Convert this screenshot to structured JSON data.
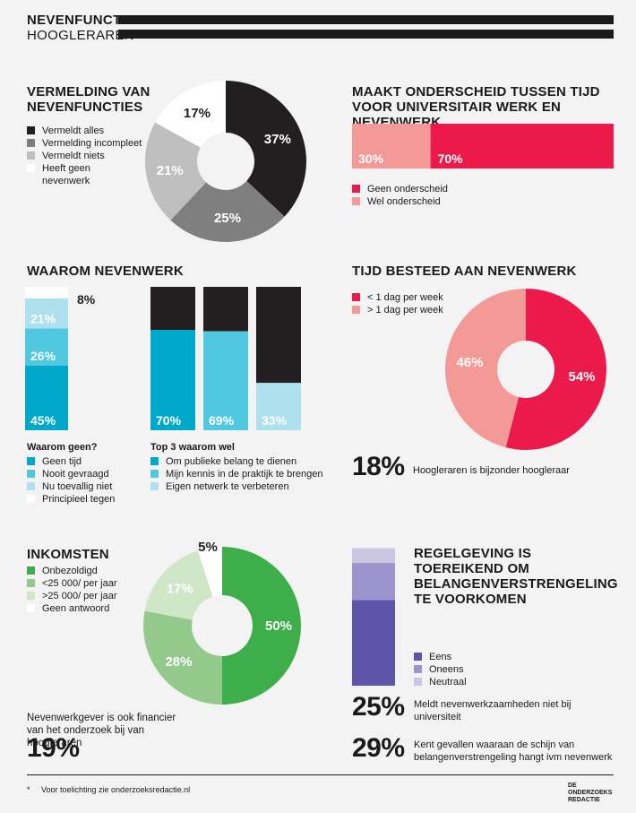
{
  "header": {
    "title": "NEVENFUNCTIES",
    "subtitle": "HOOGLERAREN"
  },
  "colors": {
    "black": "#231f20",
    "darkgray": "#7f7f7f",
    "lightgray": "#bfbfbf",
    "white": "#ffffff",
    "red": "#ec1a4b",
    "pink": "#f49a96",
    "teal": "#00a9c9",
    "teal2": "#4fc8e0",
    "teal3": "#aee0ee",
    "green": "#3dae49",
    "green2": "#93c98b",
    "green3": "#cfe6c7",
    "purple": "#5e55a8",
    "purple2": "#9c94cc",
    "purple3": "#cbc6e2"
  },
  "vermelding": {
    "heading": "VERMELDING VAN NEVENFUNCTIES",
    "legend": [
      "Vermeldt alles",
      "Vermelding incompleet",
      "Vermeldt niets",
      "Heeft geen nevenwerk"
    ],
    "labels": [
      "37%",
      "25%",
      "21%",
      "17%"
    ]
  },
  "onderscheid": {
    "heading": "MAAKT ONDERSCHEID TUSSEN TIJD VOOR UNIVERSITAIR WERK EN NEVENWERK",
    "legend": [
      "Geen onderscheid",
      "Wel onderscheid"
    ],
    "labels": [
      "70%",
      "30%"
    ]
  },
  "waarom": {
    "heading": "WAAROM NEVENWERK",
    "geen_title": "Waarom geen?",
    "geen_legend": [
      "Geen tijd",
      "Nooit gevraagd",
      "Nu toevallig niet",
      "Principieel tegen"
    ],
    "geen_labels": [
      "45%",
      "26%",
      "21%",
      "8%"
    ],
    "wel_title": "Top 3 waarom wel",
    "wel_legend": [
      "Om publieke belang te dienen",
      "Mijn kennis in de praktijk te brengen",
      "Eigen netwerk te verbeteren"
    ],
    "wel_labels": [
      "70%",
      "69%",
      "33%"
    ]
  },
  "tijd": {
    "heading": "TIJD BESTEED AAN NEVENWERK",
    "legend": [
      "< 1 dag per week",
      "> 1 dag per week"
    ],
    "labels": [
      "54%",
      "46%"
    ],
    "stat_num": "18%",
    "stat_text": "Hoogleraren is bijzonder hoogleraar"
  },
  "inkomsten": {
    "heading": "INKOMSTEN",
    "legend": [
      "Onbezoldigd",
      "<25 000/ per jaar",
      ">25 000/ per jaar",
      "Geen antwoord"
    ],
    "labels": [
      "50%",
      "28%",
      "17%",
      "5%"
    ],
    "stat_text": "Nevenwerkgever is ook financier van het onderzoek bij van hoogleraren",
    "stat_num": "19%"
  },
  "regelgeving": {
    "heading": "REGELGEVING IS TOEREIKEND OM BELANGENVERSTRENGELING TE VOORKOMEN",
    "legend": [
      "Eens",
      "Oneens",
      "Neutraal"
    ],
    "stat1_num": "25%",
    "stat1_text": "Meldt nevenwerkzaamheden niet bij universiteit",
    "stat2_num": "29%",
    "stat2_text": "Kent gevallen waaraan de schijn van belangenverstrengeling hangt ivm nevenwerk"
  },
  "footer": {
    "note": "Voor toelichting zie onderzoeksredactie.nl",
    "asterisk": "*",
    "logo_lines": [
      "DE",
      "ONDERZOEKS",
      "REDACTIE"
    ]
  },
  "chart_data": [
    {
      "type": "pie",
      "title": "VERMELDING VAN NEVENFUNCTIES",
      "categories": [
        "Vermeldt alles",
        "Vermelding incompleet",
        "Vermeldt niets",
        "Heeft geen nevenwerk"
      ],
      "values": [
        37,
        25,
        21,
        17
      ]
    },
    {
      "type": "bar",
      "title": "MAAKT ONDERSCHEID TUSSEN TIJD VOOR UNIVERSITAIR WERK EN NEVENWERK",
      "categories": [
        "Geen onderscheid",
        "Wel onderscheid"
      ],
      "values": [
        70,
        30
      ]
    },
    {
      "type": "bar",
      "title": "Waarom geen?",
      "categories": [
        "Geen tijd",
        "Nooit gevraagd",
        "Nu toevallig niet",
        "Principieel tegen"
      ],
      "values": [
        45,
        26,
        21,
        8
      ]
    },
    {
      "type": "bar",
      "title": "Top 3 waarom wel",
      "categories": [
        "Om publieke belang te dienen",
        "Mijn kennis in de praktijk te brengen",
        "Eigen netwerk te verbeteren"
      ],
      "values": [
        70,
        69,
        33
      ]
    },
    {
      "type": "pie",
      "title": "TIJD BESTEED AAN NEVENWERK",
      "categories": [
        "< 1 dag per week",
        "> 1 dag per week"
      ],
      "values": [
        54,
        46
      ]
    },
    {
      "type": "pie",
      "title": "INKOMSTEN",
      "categories": [
        "Onbezoldigd",
        "<25 000/ per jaar",
        ">25 000/ per jaar",
        "Geen antwoord"
      ],
      "values": [
        50,
        28,
        17,
        5
      ]
    },
    {
      "type": "bar",
      "title": "REGELGEVING IS TOEREIKEND OM BELANGENVERSTRENGELING TE VOORKOMEN",
      "categories": [
        "Eens",
        "Oneens",
        "Neutraal"
      ],
      "values": [
        58,
        25,
        10
      ]
    }
  ]
}
